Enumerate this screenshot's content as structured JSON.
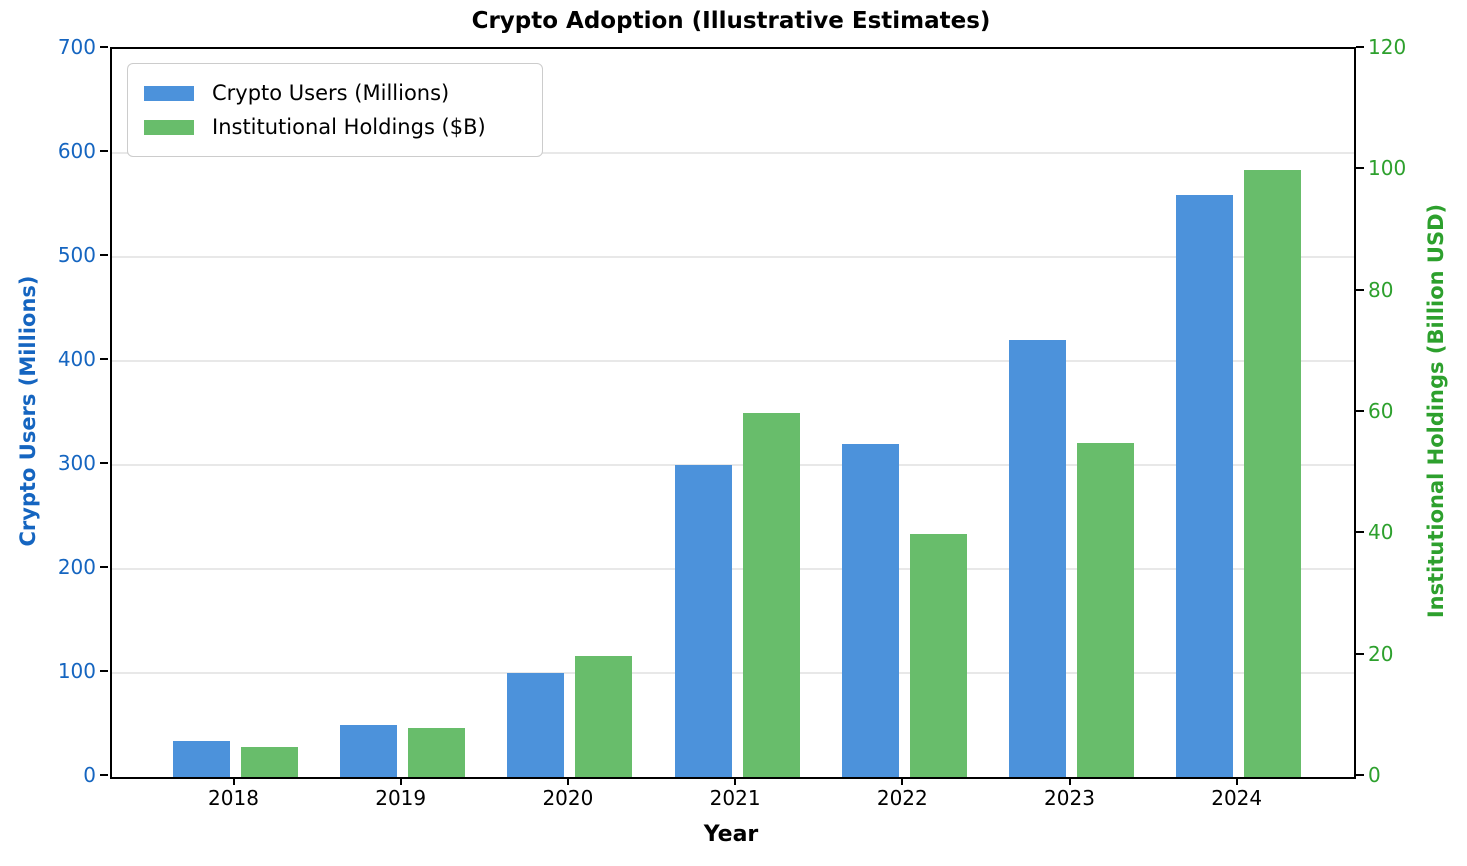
{
  "title": "Crypto Adoption (Illustrative Estimates)",
  "axes": {
    "x_label": "Year",
    "y_left_label": "Crypto Users (Millions)",
    "y_right_label": "Institutional Holdings (Billion USD)"
  },
  "colors": {
    "users_bar": "#4C92DB",
    "holdings_bar": "#68BD6B",
    "left_axis_text": "#1565C0",
    "right_axis_text": "#2DA02D",
    "gridline": "#e8e8e8"
  },
  "legend": {
    "items": [
      {
        "label": "Crypto Users (Millions)",
        "color": "#4C92DB",
        "swatch": "users-swatch"
      },
      {
        "label": "Institutional Holdings ($B)",
        "color": "#68BD6B",
        "swatch": "holdings-swatch"
      }
    ]
  },
  "chart_data": {
    "type": "bar",
    "categories": [
      "2018",
      "2019",
      "2020",
      "2021",
      "2022",
      "2023",
      "2024"
    ],
    "series": [
      {
        "name": "Crypto Users (Millions)",
        "axis": "left",
        "color": "#4C92DB",
        "values": [
          35,
          50,
          100,
          300,
          320,
          420,
          560
        ]
      },
      {
        "name": "Institutional Holdings ($B)",
        "axis": "right",
        "color": "#68BD6B",
        "values": [
          5,
          8,
          20,
          60,
          40,
          55,
          100
        ]
      }
    ],
    "title": "Crypto Adoption (Illustrative Estimates)",
    "xlabel": "Year",
    "ylabel_left": "Crypto Users (Millions)",
    "ylabel_right": "Institutional Holdings (Billion USD)",
    "ylim_left": [
      0,
      700
    ],
    "ylim_right": [
      0,
      120
    ],
    "yticks_left": [
      0,
      100,
      200,
      300,
      400,
      500,
      600,
      700
    ],
    "yticks_right": [
      0,
      20,
      40,
      60,
      80,
      100,
      120
    ],
    "grid": "horizontal-left-axis",
    "legend_position": "upper left"
  }
}
